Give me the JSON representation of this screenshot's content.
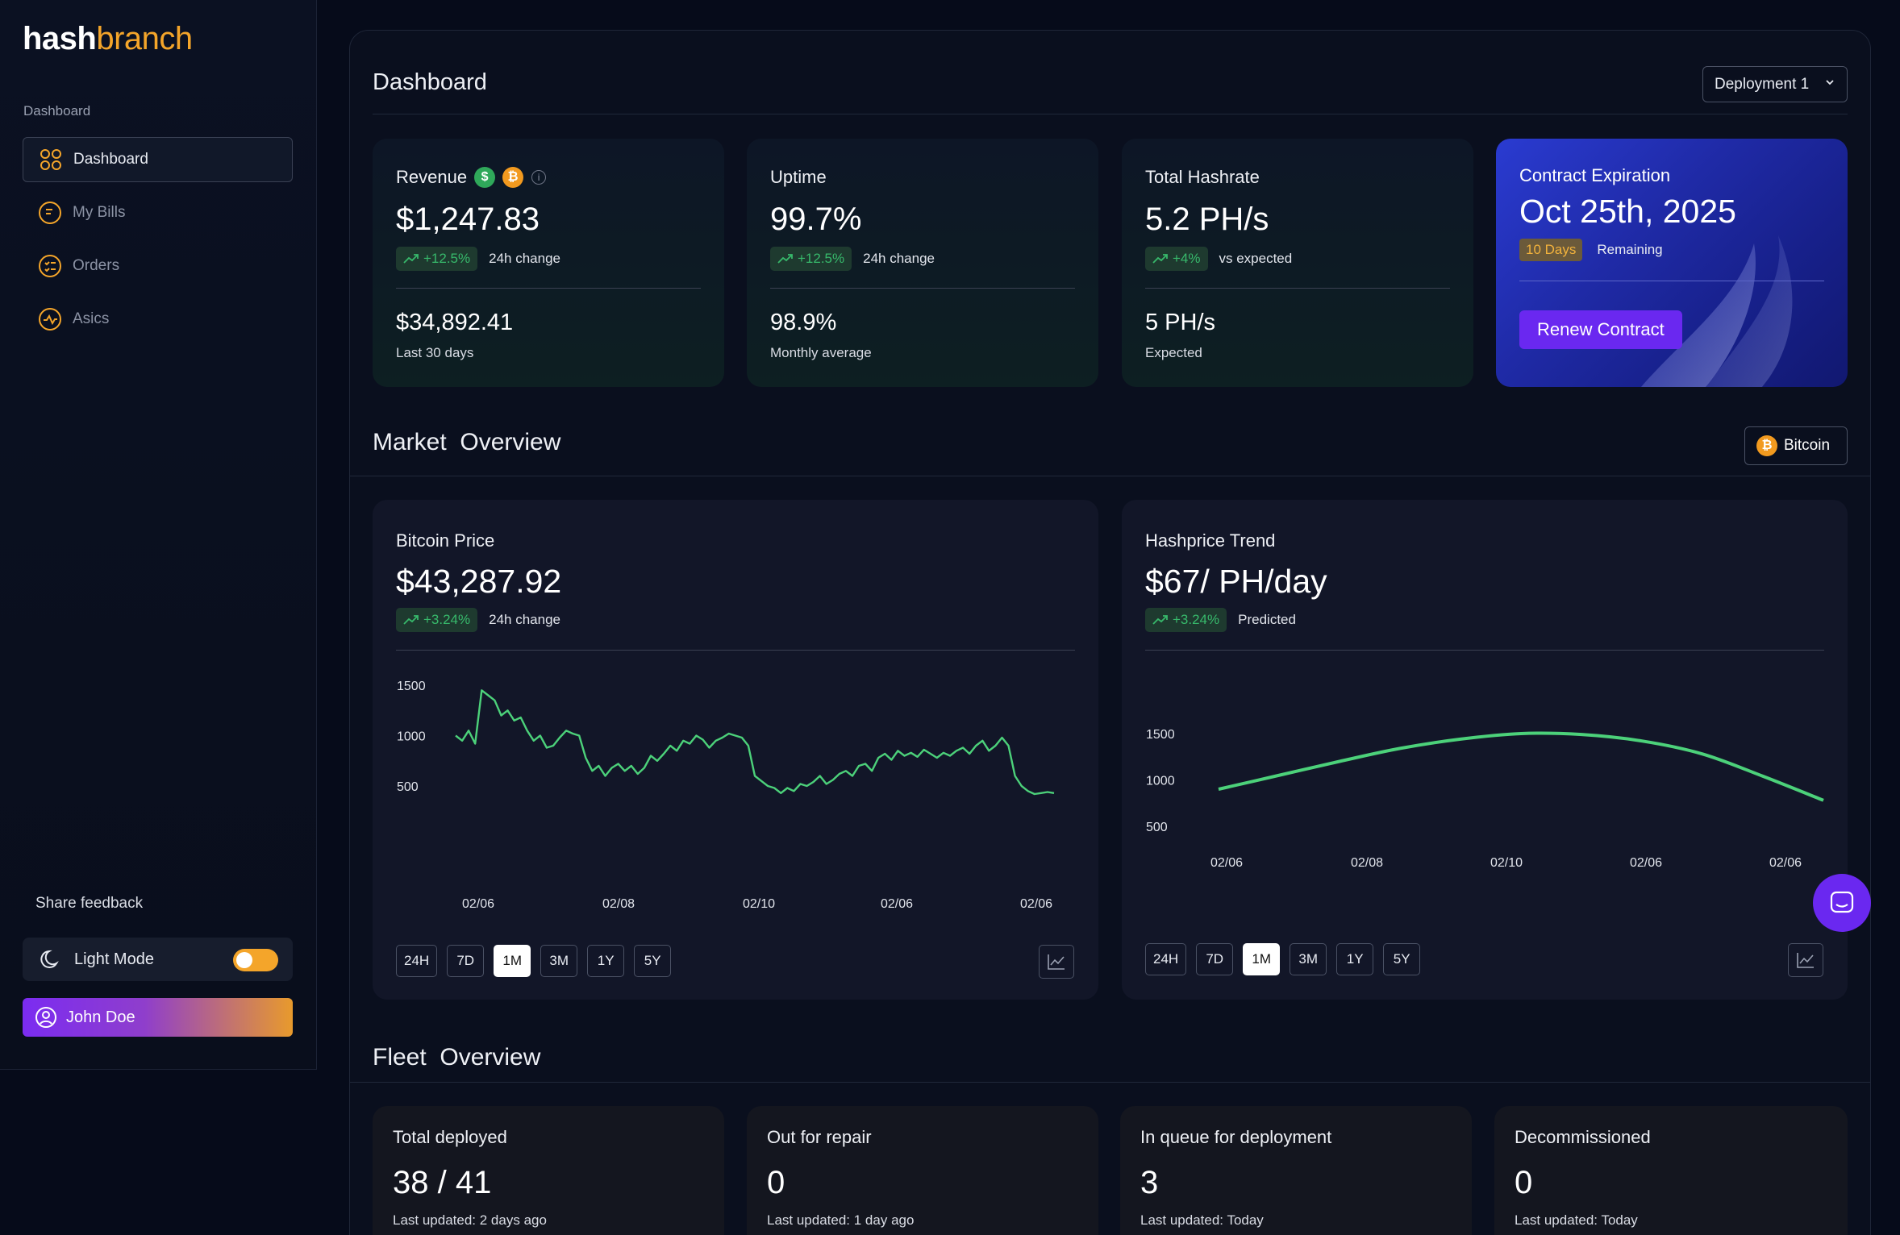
{
  "brand": {
    "part1": "hash",
    "part2": "branch"
  },
  "sidebar": {
    "section_label": "Dashboard",
    "items": [
      {
        "label": "Dashboard",
        "icon": "grid-icon",
        "active": true
      },
      {
        "label": "My Bills",
        "icon": "bill-icon",
        "active": false
      },
      {
        "label": "Orders",
        "icon": "orders-icon",
        "active": false
      },
      {
        "label": "Asics",
        "icon": "activity-icon",
        "active": false
      }
    ],
    "feedback_label": "Share feedback",
    "light_mode_label": "Light Mode",
    "light_mode_on": true,
    "user_name": "John Doe"
  },
  "header": {
    "title": "Dashboard",
    "deployment_select": "Deployment 1"
  },
  "stats": {
    "revenue": {
      "title": "Revenue",
      "usd_symbol": "$",
      "btc_symbol": "₿",
      "info_symbol": "i",
      "value": "$1,247.83",
      "change": "+12.5%",
      "change_note": "24h change",
      "sub_value": "$34,892.41",
      "sub_note": "Last 30 days"
    },
    "uptime": {
      "title": "Uptime",
      "value": "99.7%",
      "change": "+12.5%",
      "change_note": "24h change",
      "sub_value": "98.9%",
      "sub_note": "Monthly average"
    },
    "hashrate": {
      "title": "Total Hashrate",
      "value": "5.2 PH/s",
      "change": "+4%",
      "change_note": "vs expected",
      "sub_value": "5 PH/s",
      "sub_note": "Expected"
    },
    "contract": {
      "title": "Contract Expiration",
      "value": "Oct 25th, 2025",
      "days": "10 Days",
      "days_note": "Remaining",
      "button": "Renew Contract"
    }
  },
  "market": {
    "title": "Market  Overview",
    "coin_button": "Bitcoin",
    "coin_symbol": "₿",
    "ranges": [
      "24H",
      "7D",
      "1M",
      "3M",
      "1Y",
      "5Y"
    ],
    "active_range": "1M",
    "bitcoin_card": {
      "title": "Bitcoin Price",
      "value": "$43,287.92",
      "change": "+3.24%",
      "change_note": "24h change"
    },
    "hashprice_card": {
      "title": "Hashprice Trend",
      "value": "$67/ PH/day",
      "change": "+3.24%",
      "change_note": "Predicted"
    }
  },
  "chart_data": [
    {
      "type": "line",
      "title": "Bitcoin Price",
      "x_tick_labels": [
        "02/06",
        "02/08",
        "02/10",
        "02/06",
        "02/06"
      ],
      "y_tick_labels": [
        "1500",
        "1000",
        "500"
      ],
      "ylim": [
        0,
        1500
      ],
      "series_color": "#4cd17a",
      "values": [
        1000,
        950,
        1050,
        920,
        1450,
        1400,
        1350,
        1200,
        1250,
        1150,
        1180,
        1050,
        950,
        1000,
        880,
        900,
        980,
        1050,
        1020,
        1000,
        780,
        650,
        700,
        600,
        680,
        720,
        650,
        700,
        620,
        680,
        800,
        750,
        820,
        900,
        850,
        950,
        920,
        1000,
        960,
        880,
        950,
        980,
        1020,
        1000,
        980,
        900,
        600,
        550,
        500,
        480,
        430,
        480,
        450,
        520,
        500,
        540,
        600,
        520,
        560,
        620,
        650,
        600,
        700,
        720,
        650,
        780,
        820,
        760,
        850,
        800,
        830,
        790,
        860,
        820,
        780,
        830,
        800,
        850,
        880,
        820,
        900,
        950,
        850,
        900,
        980,
        900,
        600,
        500,
        450,
        420,
        430,
        440,
        430
      ]
    },
    {
      "type": "line",
      "title": "Hashprice Trend",
      "x_tick_labels": [
        "02/06",
        "02/08",
        "02/10",
        "02/06",
        "02/06"
      ],
      "y_tick_labels": [
        "1500",
        "1000",
        "500"
      ],
      "ylim": [
        0,
        1500
      ],
      "series_color": "#4cd17a",
      "values": [
        900,
        1050,
        1200,
        1340,
        1440,
        1500,
        1490,
        1420,
        1280,
        1040,
        780
      ]
    }
  ],
  "fleet": {
    "title": "Fleet  Overview",
    "cards": [
      {
        "title": "Total deployed",
        "value": "38 / 41",
        "note": "Last updated: 2 days ago"
      },
      {
        "title": "Out for repair",
        "value": "0",
        "note": "Last updated: 1 day ago"
      },
      {
        "title": "In queue for deployment",
        "value": "3",
        "note": "Last updated: Today"
      },
      {
        "title": "Decommissioned",
        "value": "0",
        "note": "Last updated: Today"
      }
    ]
  }
}
